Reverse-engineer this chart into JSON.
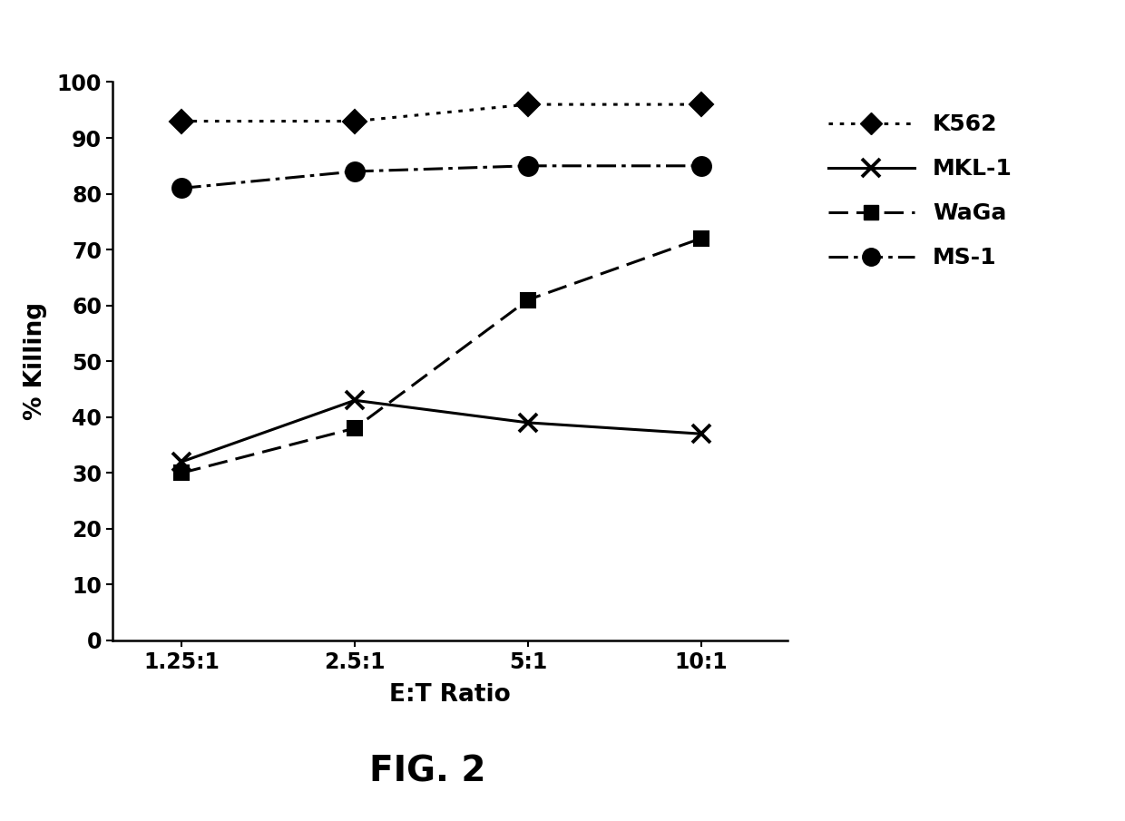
{
  "x_positions": [
    1,
    2,
    3,
    4
  ],
  "x_labels": [
    "1.25:1",
    "2.5:1",
    "5:1",
    "10:1"
  ],
  "series_order": [
    "K562",
    "MKL-1",
    "WaGa",
    "MS-1"
  ],
  "series": {
    "K562": {
      "y": [
        93,
        93,
        96,
        96
      ],
      "linestyle": "dotted",
      "marker": "D",
      "markersize": 13,
      "label": "K562"
    },
    "MKL-1": {
      "y": [
        32,
        43,
        39,
        37
      ],
      "linestyle": "solid",
      "marker": "x",
      "markersize": 15,
      "label": "MKL-1"
    },
    "WaGa": {
      "y": [
        30,
        38,
        61,
        72
      ],
      "linestyle": "dashed",
      "marker": "s",
      "markersize": 12,
      "label": "WaGa"
    },
    "MS-1": {
      "y": [
        81,
        84,
        85,
        85
      ],
      "linestyle": "dashdot",
      "marker": "o",
      "markersize": 15,
      "label": "MS-1"
    }
  },
  "linewidth": 2.2,
  "xlabel": "E:T Ratio",
  "ylabel": "% Killing",
  "ylim": [
    0,
    100
  ],
  "yticks": [
    0,
    10,
    20,
    30,
    40,
    50,
    60,
    70,
    80,
    90,
    100
  ],
  "figure_label": "FIG. 2",
  "background_color": "#ffffff",
  "tick_fontsize": 17,
  "label_fontsize": 19,
  "legend_fontsize": 18,
  "figlabel_fontsize": 28
}
